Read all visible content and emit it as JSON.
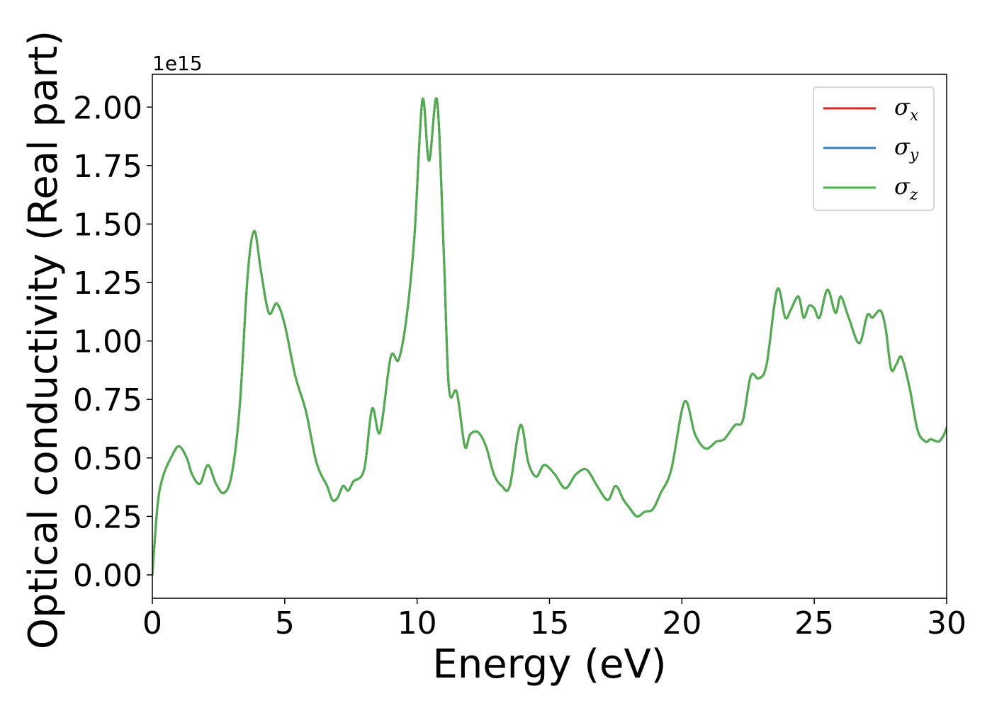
{
  "chart_data": {
    "type": "line",
    "xlabel": "Energy (eV)",
    "ylabel": "Optical conductivity (Real part)",
    "y_offset_label": "1e15",
    "xlim": [
      0,
      30
    ],
    "ylim": [
      -0.1,
      2.14
    ],
    "x_ticks": [
      0,
      5,
      10,
      15,
      20,
      25,
      30
    ],
    "x_tick_labels": [
      "0",
      "5",
      "10",
      "15",
      "20",
      "25",
      "30"
    ],
    "y_ticks": [
      0,
      0.25,
      0.5,
      0.75,
      1.0,
      1.25,
      1.5,
      1.75,
      2.0
    ],
    "y_tick_labels": [
      "0.00",
      "0.25",
      "0.50",
      "0.75",
      "1.00",
      "1.25",
      "1.50",
      "1.75",
      "2.00"
    ],
    "grid": false,
    "legend_position": "top-right",
    "series": [
      {
        "name": "σ",
        "subscript": "x",
        "color": "#d62728"
      },
      {
        "name": "σ",
        "subscript": "y",
        "color": "#3a7bbf"
      },
      {
        "name": "σ",
        "subscript": "z",
        "color": "#4daf4a"
      }
    ],
    "x": [
      0,
      0.2,
      0.4,
      0.7,
      1.0,
      1.3,
      1.5,
      1.8,
      2.1,
      2.4,
      2.7,
      3.0,
      3.3,
      3.6,
      3.85,
      4.1,
      4.4,
      4.7,
      5.0,
      5.4,
      5.8,
      6.2,
      6.6,
      6.8,
      7.0,
      7.2,
      7.4,
      7.6,
      8.0,
      8.3,
      8.6,
      9.0,
      9.3,
      9.6,
      9.9,
      10.2,
      10.45,
      10.75,
      11.0,
      11.2,
      11.5,
      11.8,
      12.0,
      12.3,
      12.6,
      12.9,
      13.2,
      13.5,
      13.9,
      14.2,
      14.5,
      14.8,
      15.2,
      15.6,
      16.0,
      16.4,
      16.8,
      17.2,
      17.5,
      17.8,
      18.0,
      18.3,
      18.6,
      18.9,
      19.2,
      19.6,
      20.1,
      20.5,
      20.9,
      21.3,
      21.6,
      22.0,
      22.3,
      22.6,
      22.9,
      23.2,
      23.6,
      23.9,
      24.1,
      24.4,
      24.6,
      24.8,
      25.0,
      25.2,
      25.5,
      25.8,
      26.0,
      26.3,
      26.7,
      27.0,
      27.2,
      27.5,
      27.7,
      27.9,
      28.1,
      28.3,
      28.6,
      28.9,
      29.2,
      29.4,
      29.7,
      29.9,
      30.0
    ],
    "y": [
      0.0,
      0.3,
      0.42,
      0.5,
      0.55,
      0.5,
      0.43,
      0.39,
      0.47,
      0.39,
      0.35,
      0.43,
      0.72,
      1.28,
      1.47,
      1.3,
      1.12,
      1.16,
      1.07,
      0.85,
      0.7,
      0.48,
      0.38,
      0.32,
      0.33,
      0.38,
      0.36,
      0.4,
      0.45,
      0.71,
      0.61,
      0.93,
      0.92,
      1.1,
      1.45,
      2.03,
      1.77,
      2.03,
      1.4,
      0.8,
      0.78,
      0.55,
      0.6,
      0.61,
      0.55,
      0.43,
      0.38,
      0.38,
      0.64,
      0.48,
      0.42,
      0.47,
      0.43,
      0.37,
      0.43,
      0.45,
      0.38,
      0.32,
      0.38,
      0.32,
      0.29,
      0.25,
      0.27,
      0.28,
      0.35,
      0.45,
      0.74,
      0.6,
      0.54,
      0.57,
      0.58,
      0.64,
      0.66,
      0.85,
      0.84,
      0.9,
      1.22,
      1.1,
      1.13,
      1.19,
      1.1,
      1.15,
      1.14,
      1.1,
      1.22,
      1.12,
      1.19,
      1.1,
      0.99,
      1.11,
      1.1,
      1.13,
      1.05,
      0.88,
      0.9,
      0.93,
      0.8,
      0.62,
      0.57,
      0.58,
      0.57,
      0.6,
      0.63
    ]
  }
}
